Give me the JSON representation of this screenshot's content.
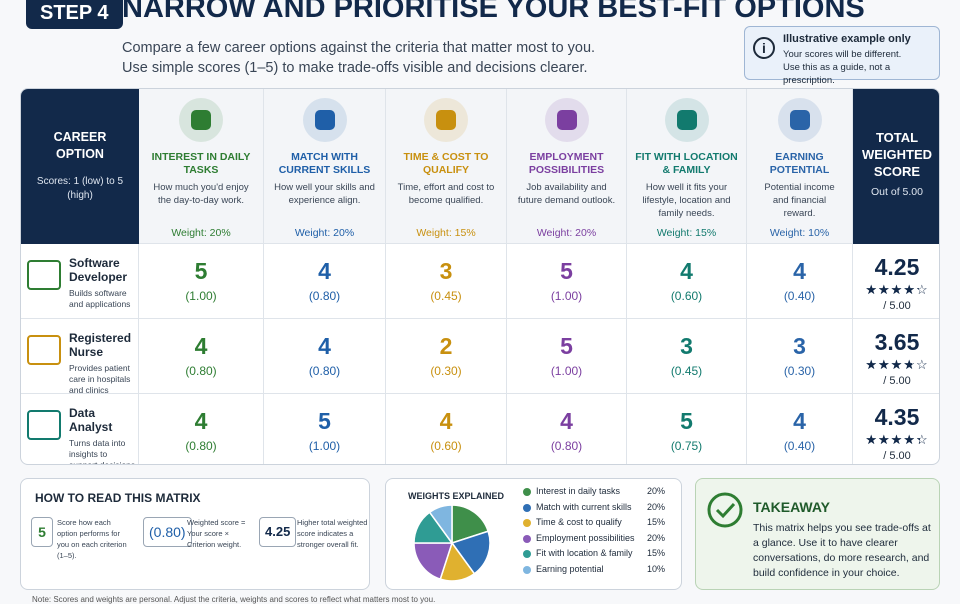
{
  "header": {
    "step": "STEP 4",
    "title": "NARROW AND PRIORITISE YOUR BEST-FIT OPTIONS",
    "subtitle": [
      "Compare a few career options against the criteria that matter most to you.",
      "Use simple scores (1–5) to make trade-offs visible and decisions clearer."
    ]
  },
  "notice": {
    "title": "Illustrative example only",
    "lines": [
      "Your scores will be different.",
      "Use this as a guide, not a prescription."
    ]
  },
  "matrix": {
    "option_header": {
      "title": "CAREER OPTION",
      "note": "Scores: 1 (low) to 5 (high)"
    },
    "criteria": [
      {
        "name": "INTEREST IN DAILY TASKS",
        "desc": "How much you'd enjoy the day-to-day work.",
        "weight": "Weight: 20%",
        "color": "#2e7d32"
      },
      {
        "name": "MATCH WITH CURRENT SKILLS",
        "desc": "How well your skills and experience align.",
        "weight": "Weight: 20%",
        "color": "#1f5fa8"
      },
      {
        "name": "TIME & COST TO QUALIFY",
        "desc": "Time, effort and cost to become qualified.",
        "weight": "Weight: 15%",
        "color": "#c8900f"
      },
      {
        "name": "EMPLOYMENT POSSIBILITIES",
        "desc": "Job availability and future demand outlook.",
        "weight": "Weight: 20%",
        "color": "#7b3fa0"
      },
      {
        "name": "FIT WITH LOCATION & FAMILY",
        "desc": "How well it fits your lifestyle, location and family needs.",
        "weight": "Weight: 15%",
        "color": "#127a6e"
      },
      {
        "name": "EARNING POTENTIAL",
        "desc": "Potential income and financial reward.",
        "weight": "Weight: 10%",
        "color": "#2a64a8"
      }
    ],
    "total_header": {
      "title": "TOTAL WEIGHTED SCORE",
      "note": "Out of 5.00"
    },
    "rows": [
      {
        "name": "Software Developer",
        "desc": "Builds software and applications",
        "scores": [
          5,
          4,
          3,
          5,
          4,
          4
        ],
        "weighted": [
          "(1.00)",
          "(0.80)",
          "(0.45)",
          "(1.00)",
          "(0.60)",
          "(0.40)"
        ],
        "total": 4.25,
        "out_of": "/ 5.00"
      },
      {
        "name": "Registered Nurse",
        "desc": "Provides patient care in hospitals and clinics",
        "scores": [
          4,
          4,
          2,
          5,
          3,
          3
        ],
        "weighted": [
          "(0.80)",
          "(0.80)",
          "(0.30)",
          "(1.00)",
          "(0.45)",
          "(0.30)"
        ],
        "total": 3.65,
        "out_of": "/ 5.00"
      },
      {
        "name": "Data Analyst",
        "desc": "Turns data into insights to support decisions",
        "scores": [
          4,
          5,
          4,
          4,
          5,
          4
        ],
        "weighted": [
          "(0.80)",
          "(1.00)",
          "(0.60)",
          "(0.80)",
          "(0.75)",
          "(0.40)"
        ],
        "total": 4.35,
        "out_of": "/ 5.00"
      }
    ]
  },
  "how_to_read": {
    "title": "HOW TO READ THIS MATRIX",
    "items": [
      {
        "sample": "5",
        "text": "Score how each option performs for you on each criterion (1–5)."
      },
      {
        "sample": "(0.80)",
        "text": "Weighted score = Your score × Criterion weight."
      },
      {
        "sample": "4.25",
        "text": "Higher total weighted score indicates a stronger overall fit."
      }
    ]
  },
  "weights": {
    "title": "WEIGHTS EXPLAINED",
    "names": [
      "Interest in daily tasks",
      "Match with current skills",
      "Time & cost to qualify",
      "Employment possibilities",
      "Fit with location & family",
      "Earning potential"
    ],
    "values": [
      20,
      20,
      15,
      20,
      15,
      10
    ],
    "value_labels": [
      "20%",
      "20%",
      "15%",
      "20%",
      "15%",
      "10%"
    ],
    "colors": [
      "#3f8f4a",
      "#2f6fb5",
      "#e0b12f",
      "#8a5bb8",
      "#2f9c94",
      "#7fb6e0"
    ]
  },
  "takeaway": {
    "title": "TAKEAWAY",
    "text": "This matrix helps you see trade-offs at a glance. Use it to have clearer conversations, do more research, and build confidence in your choice."
  },
  "footnote": "Note: Scores and weights are personal. Adjust the criteria, weights and scores to reflect what matters most to you."
}
